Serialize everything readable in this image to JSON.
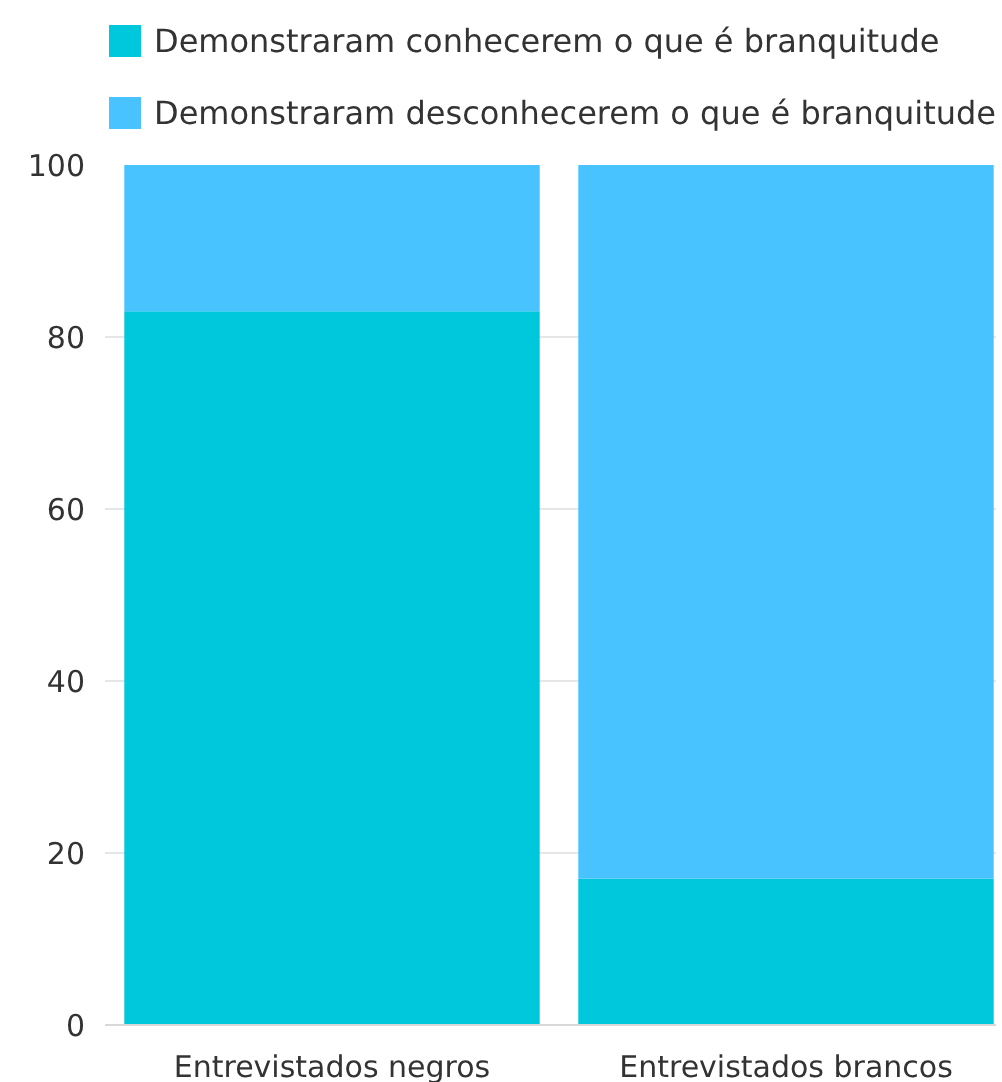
{
  "chart_data": {
    "type": "bar",
    "stacked": true,
    "categories": [
      "Entrevistados negros",
      "Entrevistados brancos"
    ],
    "series": [
      {
        "name": "Demonstraram conhecerem o que é branquitude",
        "color": "#00c8dc",
        "values": [
          83,
          17
        ]
      },
      {
        "name": "Demonstraram desconhecerem o que é branquitude",
        "color": "#48c3ff",
        "values": [
          17,
          83
        ]
      }
    ],
    "ylim": [
      0,
      100
    ],
    "yticks": [
      0,
      20,
      40,
      60,
      80,
      100
    ],
    "grid": "y",
    "legend": "top"
  }
}
